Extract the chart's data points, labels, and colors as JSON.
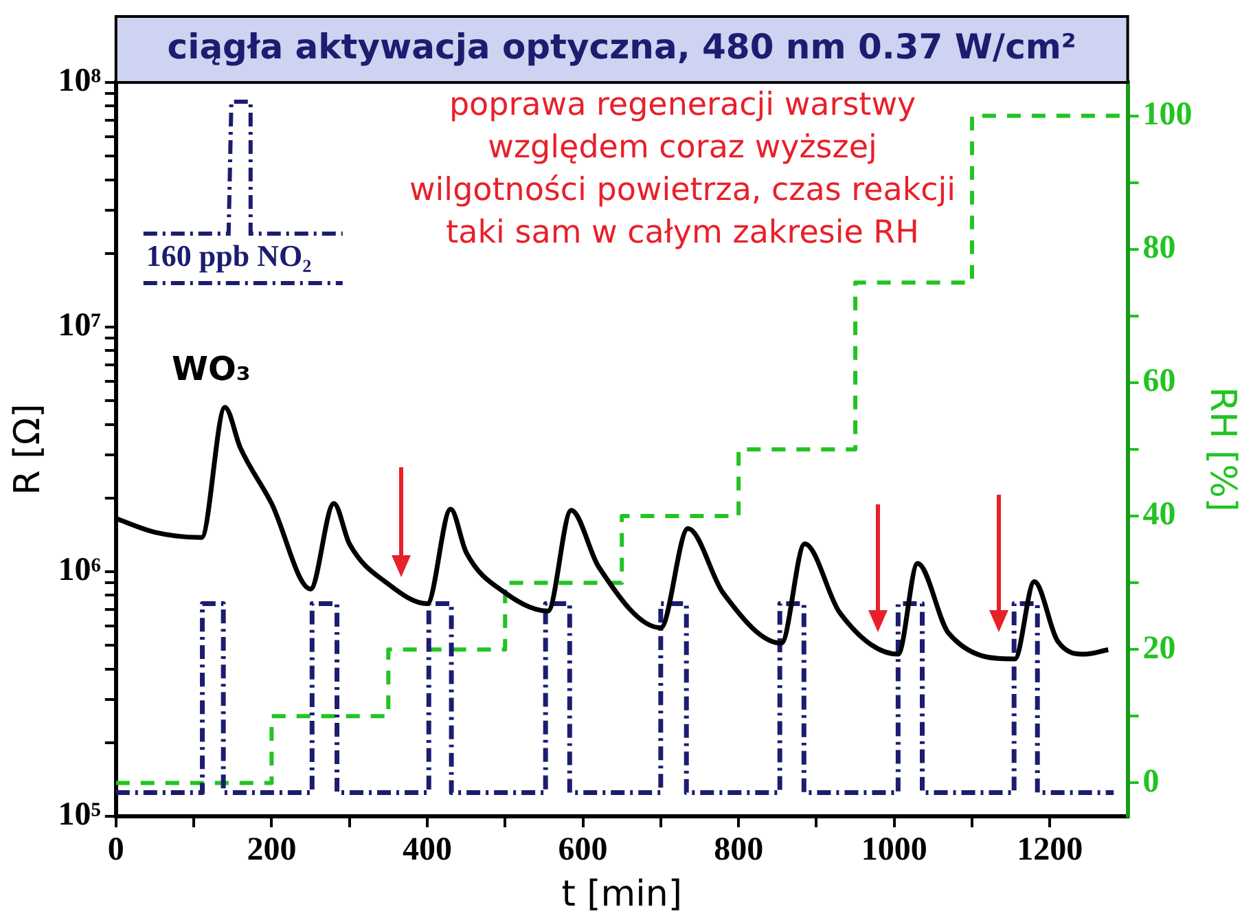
{
  "chart_data": {
    "type": "line",
    "title": "ciągła aktywacja optyczna, 480 nm 0.37 W/cm²",
    "xlabel": "t [min]",
    "ylabel": "R [Ω]",
    "y2label": "RH [%]",
    "annotations": [
      "poprawa regeneracji warstwy względem coraz wyższej wilgotności powietrza, czas reakcji taki sam w całym zakresie RH"
    ],
    "log": "y",
    "grid": false,
    "legend": "top left",
    "marker": "none",
    "xlim": [
      0,
      1300
    ],
    "xticks": [
      0,
      {
        "value": 100,
        "label": null
      },
      200,
      {
        "value": 300,
        "label": null
      },
      400,
      {
        "value": 500,
        "label": null
      },
      600,
      {
        "value": 700,
        "label": null
      },
      800,
      {
        "value": 900,
        "label": null
      },
      1000,
      {
        "value": 1100,
        "label": null
      },
      1200
    ],
    "ylim": [
      100000,
      100000000
    ],
    "yticks": [
      {
        "value": 100000,
        "label": "10⁵"
      },
      {
        "value": 200000,
        "label": null
      },
      {
        "value": 300000,
        "label": null
      },
      {
        "value": 400000,
        "label": null
      },
      {
        "value": 500000,
        "label": null
      },
      {
        "value": 600000,
        "label": null
      },
      {
        "value": 700000,
        "label": null
      },
      {
        "value": 800000,
        "label": null
      },
      {
        "value": 900000,
        "label": null
      },
      {
        "value": 1000000,
        "label": "10⁶"
      },
      {
        "value": 2000000,
        "label": null
      },
      {
        "value": 3000000,
        "label": null
      },
      {
        "value": 4000000,
        "label": null
      },
      {
        "value": 5000000,
        "label": null
      },
      {
        "value": 6000000,
        "label": null
      },
      {
        "value": 7000000,
        "label": null
      },
      {
        "value": 8000000,
        "label": null
      },
      {
        "value": 9000000,
        "label": null
      },
      {
        "value": 10000000,
        "label": "10⁷"
      },
      {
        "value": 20000000,
        "label": null
      },
      {
        "value": 30000000,
        "label": null
      },
      {
        "value": 40000000,
        "label": null
      },
      {
        "value": 50000000,
        "label": null
      },
      {
        "value": 60000000,
        "label": null
      },
      {
        "value": 70000000,
        "label": null
      },
      {
        "value": 80000000,
        "label": null
      },
      {
        "value": 90000000,
        "label": null
      },
      {
        "value": 100000000,
        "label": "10⁸"
      }
    ],
    "y2lim": [
      -5,
      105
    ],
    "y2ticks": [
      0,
      {
        "value": 10,
        "label": null
      },
      20,
      {
        "value": 30,
        "label": null
      },
      40,
      {
        "value": 50,
        "label": null
      },
      60,
      {
        "value": 70,
        "label": null
      },
      80,
      {
        "value": 90,
        "label": null
      },
      100
    ],
    "series": [
      {
        "name": "WO₃",
        "type": "line",
        "color": "#000000",
        "line_style": "solid",
        "x": [
          0,
          50,
          110,
          140,
          160,
          200,
          250,
          280,
          300,
          350,
          400,
          430,
          450,
          500,
          555,
          585,
          620,
          700,
          735,
          780,
          855,
          885,
          930,
          1005,
          1030,
          1070,
          1155,
          1180,
          1210,
          1245,
          1275
        ],
        "values": [
          1650000,
          1450000,
          1380000,
          4700000,
          3200000,
          1900000,
          850000,
          1900000,
          1300000,
          890000,
          740000,
          1800000,
          1200000,
          820000,
          690000,
          1780000,
          1050000,
          590000,
          1500000,
          820000,
          510000,
          1300000,
          680000,
          460000,
          1080000,
          560000,
          440000,
          910000,
          520000,
          460000,
          480000
        ]
      },
      {
        "name": "160 ppb NO₂",
        "type": "line",
        "color": "#1c1c70",
        "line_style": "dashdot",
        "x": [
          0,
          111,
          111,
          138,
          138,
          252,
          252,
          284,
          284,
          402,
          402,
          431,
          431,
          552,
          552,
          583,
          583,
          700,
          700,
          733,
          733,
          853,
          853,
          884,
          884,
          1005,
          1005,
          1036,
          1036,
          1154,
          1154,
          1184,
          1184,
          1282
        ],
        "values": [
          125000,
          125000,
          740000,
          740000,
          125000,
          125000,
          740000,
          740000,
          125000,
          125000,
          740000,
          740000,
          125000,
          125000,
          740000,
          740000,
          125000,
          125000,
          740000,
          740000,
          125000,
          125000,
          740000,
          740000,
          125000,
          125000,
          740000,
          740000,
          125000,
          125000,
          740000,
          740000,
          125000,
          125000
        ]
      },
      {
        "type": "step",
        "axis": "y2",
        "color": "#22c322",
        "line_style": "dashed",
        "x": [
          0,
          200,
          350,
          500,
          650,
          800,
          950,
          1100,
          1300
        ],
        "values": [
          0,
          10,
          20,
          30,
          40,
          50,
          75,
          100,
          100
        ]
      }
    ]
  }
}
